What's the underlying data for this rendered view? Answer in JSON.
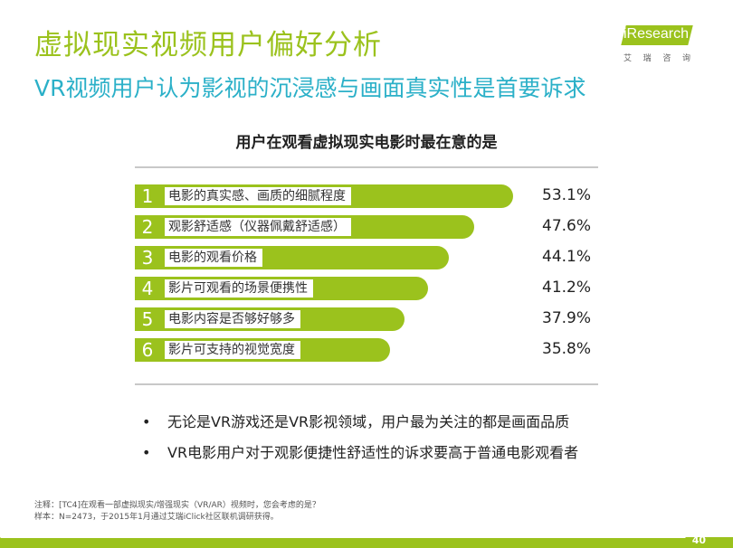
{
  "header": {
    "title": "虚拟现实视频用户偏好分析",
    "subtitle": "VR视频用户认为影视的沉浸感与画面真实性是首要诉求"
  },
  "logo": {
    "text": "iResearch",
    "cn_chars": [
      "艾",
      "瑞",
      "咨",
      "询"
    ]
  },
  "chart_data": {
    "type": "bar",
    "orientation": "horizontal",
    "title": "用户在观看虚拟现实电影时最在意的是",
    "rank_labels": [
      "1",
      "2",
      "3",
      "4",
      "5",
      "6"
    ],
    "categories": [
      "电影的真实感、画质的细腻程度",
      "观影舒适感（仪器佩戴舒适感）",
      "电影的观看价格",
      "影片可观看的场景便携性",
      "电影内容是否够好够多",
      "影片可支持的视觉宽度"
    ],
    "values": [
      53.1,
      47.6,
      44.1,
      41.2,
      37.9,
      35.8
    ],
    "value_labels": [
      "53.1%",
      "47.6%",
      "44.1%",
      "41.2%",
      "37.9%",
      "35.8%"
    ],
    "unit": "%",
    "bar_color": "#9bc21d"
  },
  "bullets": [
    "无论是VR游戏还是VR影视领域，用户最为关注的都是画面品质",
    "VR电影用户对于观影便捷性舒适性的诉求要高于普通电影观看者"
  ],
  "notes": [
    "注释：[TC4]在观看一部虚拟现实/增强现实（VR/AR）视频时，您会考虑的是？",
    "样本：N=2473，于2015年1月通过艾瑞iClick社区联机调研获得。"
  ],
  "page_number": "40",
  "colors": {
    "accent_green": "#9bc21d",
    "subtitle_blue": "#2bb0c8"
  }
}
